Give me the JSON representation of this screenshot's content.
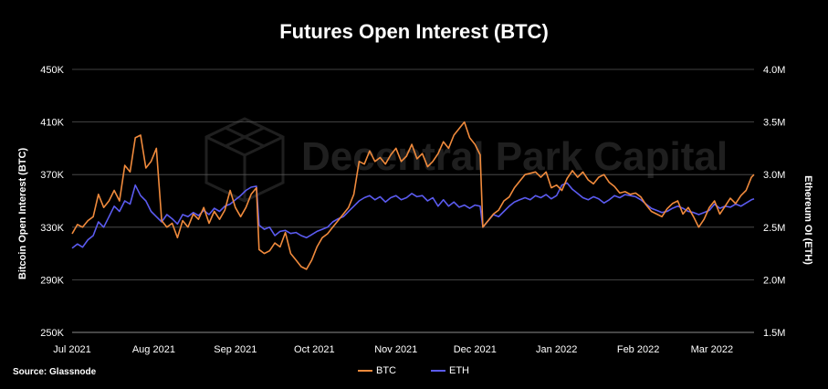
{
  "chart_data": {
    "type": "line",
    "title": "Futures Open Interest (BTC)",
    "source": "Source: Glassnode",
    "watermark": "Decentral Park Capital",
    "ylabel_left": "Bitcoin Open Interest (BTC)",
    "ylabel_right": "Ethereum OI (ETH)",
    "ylim_left": [
      250000,
      450000
    ],
    "ylim_right": [
      1500000,
      4000000
    ],
    "yticks_left": [
      "250K",
      "290K",
      "330K",
      "370K",
      "410K",
      "450K"
    ],
    "yticks_right": [
      "1.5M",
      "2.0M",
      "2.5M",
      "3.0M",
      "3.5M",
      "4.0M"
    ],
    "xticks": [
      "Jul 2021",
      "Aug 2021",
      "Sep 2021",
      "Oct 2021",
      "Nov 2021",
      "Dec 2021",
      "Jan 2022",
      "Feb 2022",
      "Mar 2022"
    ],
    "x_range": [
      "2021-07-01",
      "2022-03-17"
    ],
    "grid": true,
    "legend_position": "bottom",
    "series": [
      {
        "name": "BTC",
        "axis": "left",
        "color": "#f08a3c",
        "points": [
          [
            "2021-07-01",
            325000
          ],
          [
            "2021-07-03",
            332000
          ],
          [
            "2021-07-05",
            330000
          ],
          [
            "2021-07-07",
            335000
          ],
          [
            "2021-07-09",
            338000
          ],
          [
            "2021-07-11",
            355000
          ],
          [
            "2021-07-13",
            345000
          ],
          [
            "2021-07-15",
            350000
          ],
          [
            "2021-07-17",
            358000
          ],
          [
            "2021-07-19",
            350000
          ],
          [
            "2021-07-21",
            377000
          ],
          [
            "2021-07-23",
            372000
          ],
          [
            "2021-07-25",
            398000
          ],
          [
            "2021-07-27",
            400000
          ],
          [
            "2021-07-29",
            375000
          ],
          [
            "2021-07-31",
            380000
          ],
          [
            "2021-08-02",
            390000
          ],
          [
            "2021-08-04",
            335000
          ],
          [
            "2021-08-06",
            330000
          ],
          [
            "2021-08-08",
            333000
          ],
          [
            "2021-08-10",
            322000
          ],
          [
            "2021-08-12",
            335000
          ],
          [
            "2021-08-14",
            330000
          ],
          [
            "2021-08-16",
            340000
          ],
          [
            "2021-08-18",
            336000
          ],
          [
            "2021-08-20",
            345000
          ],
          [
            "2021-08-22",
            333000
          ],
          [
            "2021-08-24",
            342000
          ],
          [
            "2021-08-26",
            336000
          ],
          [
            "2021-08-28",
            343000
          ],
          [
            "2021-08-30",
            358000
          ],
          [
            "2021-09-01",
            345000
          ],
          [
            "2021-09-03",
            338000
          ],
          [
            "2021-09-05",
            345000
          ],
          [
            "2021-09-07",
            355000
          ],
          [
            "2021-09-09",
            360000
          ],
          [
            "2021-09-10",
            313000
          ],
          [
            "2021-09-12",
            310000
          ],
          [
            "2021-09-14",
            312000
          ],
          [
            "2021-09-16",
            318000
          ],
          [
            "2021-09-18",
            315000
          ],
          [
            "2021-09-20",
            326000
          ],
          [
            "2021-09-22",
            310000
          ],
          [
            "2021-09-24",
            305000
          ],
          [
            "2021-09-26",
            300000
          ],
          [
            "2021-09-28",
            298000
          ],
          [
            "2021-09-30",
            305000
          ],
          [
            "2021-10-02",
            315000
          ],
          [
            "2021-10-04",
            322000
          ],
          [
            "2021-10-06",
            325000
          ],
          [
            "2021-10-08",
            330000
          ],
          [
            "2021-10-10",
            335000
          ],
          [
            "2021-10-12",
            340000
          ],
          [
            "2021-10-14",
            345000
          ],
          [
            "2021-10-16",
            355000
          ],
          [
            "2021-10-18",
            380000
          ],
          [
            "2021-10-20",
            378000
          ],
          [
            "2021-10-22",
            388000
          ],
          [
            "2021-10-24",
            380000
          ],
          [
            "2021-10-26",
            383000
          ],
          [
            "2021-10-28",
            378000
          ],
          [
            "2021-10-30",
            385000
          ],
          [
            "2021-11-01",
            390000
          ],
          [
            "2021-11-03",
            380000
          ],
          [
            "2021-11-05",
            384000
          ],
          [
            "2021-11-07",
            393000
          ],
          [
            "2021-11-09",
            382000
          ],
          [
            "2021-11-11",
            386000
          ],
          [
            "2021-11-13",
            376000
          ],
          [
            "2021-11-15",
            380000
          ],
          [
            "2021-11-17",
            386000
          ],
          [
            "2021-11-19",
            395000
          ],
          [
            "2021-11-21",
            390000
          ],
          [
            "2021-11-23",
            400000
          ],
          [
            "2021-11-25",
            405000
          ],
          [
            "2021-11-27",
            410000
          ],
          [
            "2021-11-29",
            398000
          ],
          [
            "2021-12-01",
            393000
          ],
          [
            "2021-12-03",
            385000
          ],
          [
            "2021-12-04",
            330000
          ],
          [
            "2021-12-06",
            335000
          ],
          [
            "2021-12-08",
            340000
          ],
          [
            "2021-12-10",
            343000
          ],
          [
            "2021-12-12",
            350000
          ],
          [
            "2021-12-14",
            353000
          ],
          [
            "2021-12-16",
            360000
          ],
          [
            "2021-12-18",
            365000
          ],
          [
            "2021-12-20",
            370000
          ],
          [
            "2021-12-22",
            371000
          ],
          [
            "2021-12-24",
            372000
          ],
          [
            "2021-12-26",
            368000
          ],
          [
            "2021-12-28",
            372000
          ],
          [
            "2021-12-30",
            360000
          ],
          [
            "2022-01-01",
            362000
          ],
          [
            "2022-01-03",
            358000
          ],
          [
            "2022-01-05",
            367000
          ],
          [
            "2022-01-07",
            373000
          ],
          [
            "2022-01-09",
            368000
          ],
          [
            "2022-01-11",
            372000
          ],
          [
            "2022-01-13",
            366000
          ],
          [
            "2022-01-15",
            363000
          ],
          [
            "2022-01-17",
            368000
          ],
          [
            "2022-01-19",
            370000
          ],
          [
            "2022-01-21",
            364000
          ],
          [
            "2022-01-23",
            361000
          ],
          [
            "2022-01-25",
            356000
          ],
          [
            "2022-01-27",
            357000
          ],
          [
            "2022-01-29",
            355000
          ],
          [
            "2022-01-31",
            356000
          ],
          [
            "2022-02-02",
            353000
          ],
          [
            "2022-02-04",
            347000
          ],
          [
            "2022-02-06",
            342000
          ],
          [
            "2022-02-08",
            340000
          ],
          [
            "2022-02-10",
            338000
          ],
          [
            "2022-02-12",
            344000
          ],
          [
            "2022-02-14",
            348000
          ],
          [
            "2022-02-16",
            350000
          ],
          [
            "2022-02-18",
            340000
          ],
          [
            "2022-02-20",
            345000
          ],
          [
            "2022-02-22",
            338000
          ],
          [
            "2022-02-24",
            330000
          ],
          [
            "2022-02-26",
            336000
          ],
          [
            "2022-02-28",
            345000
          ],
          [
            "2022-03-02",
            350000
          ],
          [
            "2022-03-04",
            340000
          ],
          [
            "2022-03-06",
            346000
          ],
          [
            "2022-03-08",
            352000
          ],
          [
            "2022-03-10",
            348000
          ],
          [
            "2022-03-12",
            354000
          ],
          [
            "2022-03-14",
            358000
          ],
          [
            "2022-03-16",
            368000
          ],
          [
            "2022-03-17",
            370000
          ]
        ]
      },
      {
        "name": "ETH",
        "axis": "right",
        "color": "#5b5bf0",
        "points": [
          [
            "2021-07-01",
            2300000
          ],
          [
            "2021-07-03",
            2340000
          ],
          [
            "2021-07-05",
            2310000
          ],
          [
            "2021-07-07",
            2380000
          ],
          [
            "2021-07-09",
            2420000
          ],
          [
            "2021-07-11",
            2550000
          ],
          [
            "2021-07-13",
            2500000
          ],
          [
            "2021-07-15",
            2600000
          ],
          [
            "2021-07-17",
            2700000
          ],
          [
            "2021-07-19",
            2650000
          ],
          [
            "2021-07-21",
            2750000
          ],
          [
            "2021-07-23",
            2720000
          ],
          [
            "2021-07-25",
            2900000
          ],
          [
            "2021-07-27",
            2800000
          ],
          [
            "2021-07-29",
            2750000
          ],
          [
            "2021-07-31",
            2650000
          ],
          [
            "2021-08-02",
            2600000
          ],
          [
            "2021-08-04",
            2550000
          ],
          [
            "2021-08-06",
            2620000
          ],
          [
            "2021-08-08",
            2580000
          ],
          [
            "2021-08-10",
            2530000
          ],
          [
            "2021-08-12",
            2620000
          ],
          [
            "2021-08-14",
            2600000
          ],
          [
            "2021-08-16",
            2640000
          ],
          [
            "2021-08-18",
            2610000
          ],
          [
            "2021-08-20",
            2660000
          ],
          [
            "2021-08-22",
            2620000
          ],
          [
            "2021-08-24",
            2680000
          ],
          [
            "2021-08-26",
            2650000
          ],
          [
            "2021-08-28",
            2700000
          ],
          [
            "2021-08-30",
            2720000
          ],
          [
            "2021-09-01",
            2760000
          ],
          [
            "2021-09-03",
            2800000
          ],
          [
            "2021-09-05",
            2850000
          ],
          [
            "2021-09-07",
            2880000
          ],
          [
            "2021-09-09",
            2890000
          ],
          [
            "2021-09-10",
            2520000
          ],
          [
            "2021-09-12",
            2480000
          ],
          [
            "2021-09-14",
            2500000
          ],
          [
            "2021-09-16",
            2420000
          ],
          [
            "2021-09-18",
            2460000
          ],
          [
            "2021-09-20",
            2470000
          ],
          [
            "2021-09-22",
            2440000
          ],
          [
            "2021-09-24",
            2450000
          ],
          [
            "2021-09-26",
            2420000
          ],
          [
            "2021-09-28",
            2400000
          ],
          [
            "2021-09-30",
            2430000
          ],
          [
            "2021-10-02",
            2460000
          ],
          [
            "2021-10-04",
            2480000
          ],
          [
            "2021-10-06",
            2500000
          ],
          [
            "2021-10-08",
            2550000
          ],
          [
            "2021-10-10",
            2580000
          ],
          [
            "2021-10-12",
            2600000
          ],
          [
            "2021-10-14",
            2650000
          ],
          [
            "2021-10-16",
            2700000
          ],
          [
            "2021-10-18",
            2750000
          ],
          [
            "2021-10-20",
            2780000
          ],
          [
            "2021-10-22",
            2800000
          ],
          [
            "2021-10-24",
            2760000
          ],
          [
            "2021-10-26",
            2790000
          ],
          [
            "2021-10-28",
            2740000
          ],
          [
            "2021-10-30",
            2780000
          ],
          [
            "2021-11-01",
            2800000
          ],
          [
            "2021-11-03",
            2760000
          ],
          [
            "2021-11-05",
            2780000
          ],
          [
            "2021-11-07",
            2820000
          ],
          [
            "2021-11-09",
            2790000
          ],
          [
            "2021-11-11",
            2800000
          ],
          [
            "2021-11-13",
            2750000
          ],
          [
            "2021-11-15",
            2780000
          ],
          [
            "2021-11-17",
            2700000
          ],
          [
            "2021-11-19",
            2760000
          ],
          [
            "2021-11-21",
            2700000
          ],
          [
            "2021-11-23",
            2740000
          ],
          [
            "2021-11-25",
            2690000
          ],
          [
            "2021-11-27",
            2710000
          ],
          [
            "2021-11-29",
            2680000
          ],
          [
            "2021-12-01",
            2710000
          ],
          [
            "2021-12-03",
            2700000
          ],
          [
            "2021-12-04",
            2500000
          ],
          [
            "2021-12-06",
            2560000
          ],
          [
            "2021-12-08",
            2620000
          ],
          [
            "2021-12-10",
            2600000
          ],
          [
            "2021-12-12",
            2650000
          ],
          [
            "2021-12-14",
            2700000
          ],
          [
            "2021-12-16",
            2740000
          ],
          [
            "2021-12-18",
            2760000
          ],
          [
            "2021-12-20",
            2780000
          ],
          [
            "2021-12-22",
            2760000
          ],
          [
            "2021-12-24",
            2800000
          ],
          [
            "2021-12-26",
            2780000
          ],
          [
            "2021-12-28",
            2810000
          ],
          [
            "2021-12-30",
            2770000
          ],
          [
            "2022-01-01",
            2800000
          ],
          [
            "2022-01-03",
            2900000
          ],
          [
            "2022-01-05",
            2920000
          ],
          [
            "2022-01-07",
            2860000
          ],
          [
            "2022-01-09",
            2820000
          ],
          [
            "2022-01-11",
            2780000
          ],
          [
            "2022-01-13",
            2760000
          ],
          [
            "2022-01-15",
            2790000
          ],
          [
            "2022-01-17",
            2770000
          ],
          [
            "2022-01-19",
            2730000
          ],
          [
            "2022-01-21",
            2760000
          ],
          [
            "2022-01-23",
            2800000
          ],
          [
            "2022-01-25",
            2780000
          ],
          [
            "2022-01-27",
            2810000
          ],
          [
            "2022-01-29",
            2800000
          ],
          [
            "2022-01-31",
            2790000
          ],
          [
            "2022-02-02",
            2760000
          ],
          [
            "2022-02-04",
            2720000
          ],
          [
            "2022-02-06",
            2680000
          ],
          [
            "2022-02-08",
            2660000
          ],
          [
            "2022-02-10",
            2640000
          ],
          [
            "2022-02-12",
            2650000
          ],
          [
            "2022-02-14",
            2680000
          ],
          [
            "2022-02-16",
            2700000
          ],
          [
            "2022-02-18",
            2680000
          ],
          [
            "2022-02-20",
            2650000
          ],
          [
            "2022-02-22",
            2640000
          ],
          [
            "2022-02-24",
            2620000
          ],
          [
            "2022-02-26",
            2640000
          ],
          [
            "2022-02-28",
            2660000
          ],
          [
            "2022-03-02",
            2720000
          ],
          [
            "2022-03-04",
            2680000
          ],
          [
            "2022-03-06",
            2700000
          ],
          [
            "2022-03-08",
            2690000
          ],
          [
            "2022-03-10",
            2720000
          ],
          [
            "2022-03-12",
            2700000
          ],
          [
            "2022-03-14",
            2730000
          ],
          [
            "2022-03-16",
            2760000
          ],
          [
            "2022-03-17",
            2770000
          ]
        ]
      }
    ]
  }
}
